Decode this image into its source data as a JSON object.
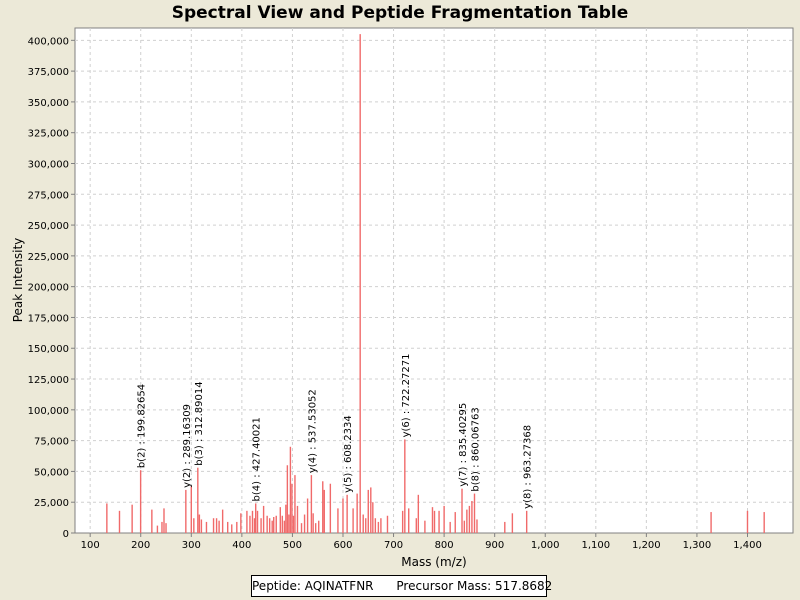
{
  "chart_data": {
    "type": "bar",
    "title": "Spectral View and Peptide Fragmentation Table",
    "xlabel": "Mass (m/z)",
    "ylabel": "Peak Intensity",
    "xlim": [
      70,
      1490
    ],
    "ylim": [
      0,
      410000
    ],
    "x_ticks": [
      100,
      200,
      300,
      400,
      500,
      600,
      700,
      800,
      900,
      1000,
      1100,
      1200,
      1300,
      1400
    ],
    "x_tick_labels": [
      "100",
      "200",
      "300",
      "400",
      "500",
      "600",
      "700",
      "800",
      "900",
      "1,000",
      "1,100",
      "1,200",
      "1,300",
      "1,400"
    ],
    "y_ticks": [
      0,
      25000,
      50000,
      75000,
      100000,
      125000,
      150000,
      175000,
      200000,
      225000,
      250000,
      275000,
      300000,
      325000,
      350000,
      375000,
      400000
    ],
    "y_tick_labels": [
      "0",
      "25,000",
      "50,000",
      "75,000",
      "100,000",
      "125,000",
      "150,000",
      "175,000",
      "200,000",
      "225,000",
      "250,000",
      "275,000",
      "300,000",
      "325,000",
      "350,000",
      "375,000",
      "400,000"
    ],
    "grid": true,
    "peak_color": "#f06a6a",
    "peaks": [
      {
        "x": 133,
        "y": 24000
      },
      {
        "x": 158,
        "y": 18000
      },
      {
        "x": 183,
        "y": 23000
      },
      {
        "x": 199.8,
        "y": 51000
      },
      {
        "x": 222,
        "y": 19000
      },
      {
        "x": 233,
        "y": 6000
      },
      {
        "x": 242,
        "y": 9000
      },
      {
        "x": 246,
        "y": 20000
      },
      {
        "x": 250,
        "y": 8000
      },
      {
        "x": 289.2,
        "y": 35000
      },
      {
        "x": 300,
        "y": 38000
      },
      {
        "x": 305,
        "y": 12000
      },
      {
        "x": 312.9,
        "y": 53000
      },
      {
        "x": 316,
        "y": 15000
      },
      {
        "x": 320,
        "y": 11000
      },
      {
        "x": 330,
        "y": 9000
      },
      {
        "x": 344,
        "y": 12000
      },
      {
        "x": 350,
        "y": 12000
      },
      {
        "x": 355,
        "y": 10000
      },
      {
        "x": 362,
        "y": 19000
      },
      {
        "x": 372,
        "y": 9000
      },
      {
        "x": 380,
        "y": 7000
      },
      {
        "x": 390,
        "y": 9000
      },
      {
        "x": 398,
        "y": 16000
      },
      {
        "x": 410,
        "y": 18000
      },
      {
        "x": 416,
        "y": 14000
      },
      {
        "x": 421,
        "y": 18000
      },
      {
        "x": 425,
        "y": 12000
      },
      {
        "x": 427.4,
        "y": 24000
      },
      {
        "x": 431,
        "y": 18000
      },
      {
        "x": 438,
        "y": 12000
      },
      {
        "x": 443,
        "y": 22000
      },
      {
        "x": 450,
        "y": 14000
      },
      {
        "x": 455,
        "y": 12000
      },
      {
        "x": 460,
        "y": 10000
      },
      {
        "x": 463,
        "y": 13000
      },
      {
        "x": 468,
        "y": 14000
      },
      {
        "x": 476,
        "y": 21000
      },
      {
        "x": 480,
        "y": 14000
      },
      {
        "x": 484,
        "y": 10000
      },
      {
        "x": 487,
        "y": 23000
      },
      {
        "x": 490,
        "y": 55000
      },
      {
        "x": 493,
        "y": 15000
      },
      {
        "x": 496,
        "y": 70000
      },
      {
        "x": 499,
        "y": 40000
      },
      {
        "x": 502,
        "y": 14000
      },
      {
        "x": 505,
        "y": 47000
      },
      {
        "x": 510,
        "y": 22000
      },
      {
        "x": 518,
        "y": 8000
      },
      {
        "x": 524,
        "y": 15000
      },
      {
        "x": 530,
        "y": 28000
      },
      {
        "x": 537.5,
        "y": 47000
      },
      {
        "x": 541,
        "y": 16000
      },
      {
        "x": 546,
        "y": 8000
      },
      {
        "x": 552,
        "y": 10000
      },
      {
        "x": 560,
        "y": 42000
      },
      {
        "x": 563,
        "y": 35000
      },
      {
        "x": 575,
        "y": 40000
      },
      {
        "x": 590,
        "y": 20000
      },
      {
        "x": 600,
        "y": 28000
      },
      {
        "x": 608.2,
        "y": 31000
      },
      {
        "x": 620,
        "y": 20000
      },
      {
        "x": 628,
        "y": 32000
      },
      {
        "x": 634,
        "y": 405000
      },
      {
        "x": 640,
        "y": 15000
      },
      {
        "x": 645,
        "y": 12000
      },
      {
        "x": 650,
        "y": 35000
      },
      {
        "x": 655,
        "y": 37000
      },
      {
        "x": 659,
        "y": 25000
      },
      {
        "x": 664,
        "y": 12000
      },
      {
        "x": 670,
        "y": 9000
      },
      {
        "x": 675,
        "y": 12000
      },
      {
        "x": 688,
        "y": 14000
      },
      {
        "x": 718,
        "y": 18000
      },
      {
        "x": 722.3,
        "y": 76000
      },
      {
        "x": 730,
        "y": 20000
      },
      {
        "x": 745,
        "y": 12000
      },
      {
        "x": 749,
        "y": 31000
      },
      {
        "x": 762,
        "y": 10000
      },
      {
        "x": 777,
        "y": 21000
      },
      {
        "x": 781,
        "y": 18000
      },
      {
        "x": 790,
        "y": 18000
      },
      {
        "x": 800,
        "y": 22000
      },
      {
        "x": 812,
        "y": 9000
      },
      {
        "x": 822,
        "y": 17000
      },
      {
        "x": 835.4,
        "y": 36000
      },
      {
        "x": 840,
        "y": 10000
      },
      {
        "x": 845,
        "y": 19000
      },
      {
        "x": 850,
        "y": 22000
      },
      {
        "x": 855,
        "y": 26000
      },
      {
        "x": 860.1,
        "y": 32000
      },
      {
        "x": 865,
        "y": 11000
      },
      {
        "x": 920,
        "y": 9000
      },
      {
        "x": 935,
        "y": 16000
      },
      {
        "x": 963.3,
        "y": 18000
      },
      {
        "x": 1328,
        "y": 17000
      },
      {
        "x": 1400,
        "y": 18000
      },
      {
        "x": 1433,
        "y": 17000
      }
    ],
    "annotations": [
      {
        "x": 199.8,
        "y": 51000,
        "label": "b(2) : 199.82654"
      },
      {
        "x": 289.2,
        "y": 35000,
        "label": "y(2) : 289.16309"
      },
      {
        "x": 312.9,
        "y": 53000,
        "label": "b(3) : 312.89014"
      },
      {
        "x": 427.4,
        "y": 24000,
        "label": "b(4) : 427.40021"
      },
      {
        "x": 537.5,
        "y": 47000,
        "label": "y(4) : 537.53052"
      },
      {
        "x": 608.2,
        "y": 31000,
        "label": "y(5) : 608.2334"
      },
      {
        "x": 722.3,
        "y": 76000,
        "label": "y(6) : 722.27271"
      },
      {
        "x": 835.4,
        "y": 36000,
        "label": "y(7) : 835.40295"
      },
      {
        "x": 860.1,
        "y": 32000,
        "label": "b(8) : 860.06763"
      },
      {
        "x": 963.3,
        "y": 18000,
        "label": "y(8) : 963.27368"
      }
    ]
  },
  "legend": {
    "peptide_label": "Peptide:",
    "peptide": "AQINATFNR",
    "precursor_label": "Precursor Mass:",
    "precursor_mass": "517.8682"
  }
}
